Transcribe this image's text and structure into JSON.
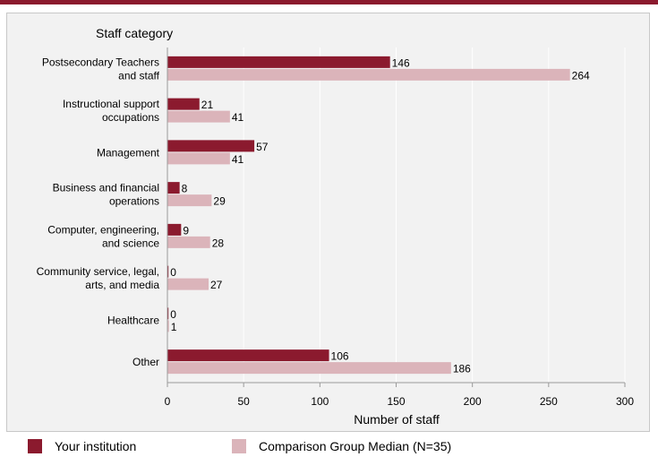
{
  "chart_data": {
    "type": "bar",
    "orientation": "horizontal",
    "title": "",
    "ylabel": "Staff category",
    "xlabel": "Number of staff",
    "xlim": [
      0,
      300
    ],
    "xticks": [
      0,
      50,
      100,
      150,
      200,
      250,
      300
    ],
    "categories": [
      [
        "Postsecondary Teachers",
        "and staff"
      ],
      [
        "Instructional support",
        "occupations"
      ],
      [
        "Management"
      ],
      [
        "Business and financial",
        "operations"
      ],
      [
        "Computer, engineering,",
        "and science"
      ],
      [
        "Community service, legal,",
        "arts, and media"
      ],
      [
        "Healthcare"
      ],
      [
        "Other"
      ]
    ],
    "series": [
      {
        "name": "Your institution",
        "color": "#8b1a2e",
        "values": [
          146,
          21,
          57,
          8,
          9,
          0,
          0,
          106
        ]
      },
      {
        "name": "Comparison Group Median (N=35)",
        "color": "#dbb4ba",
        "values": [
          264,
          41,
          41,
          29,
          28,
          27,
          1,
          186
        ]
      }
    ],
    "grid": "vertical",
    "legend_position": "bottom"
  }
}
